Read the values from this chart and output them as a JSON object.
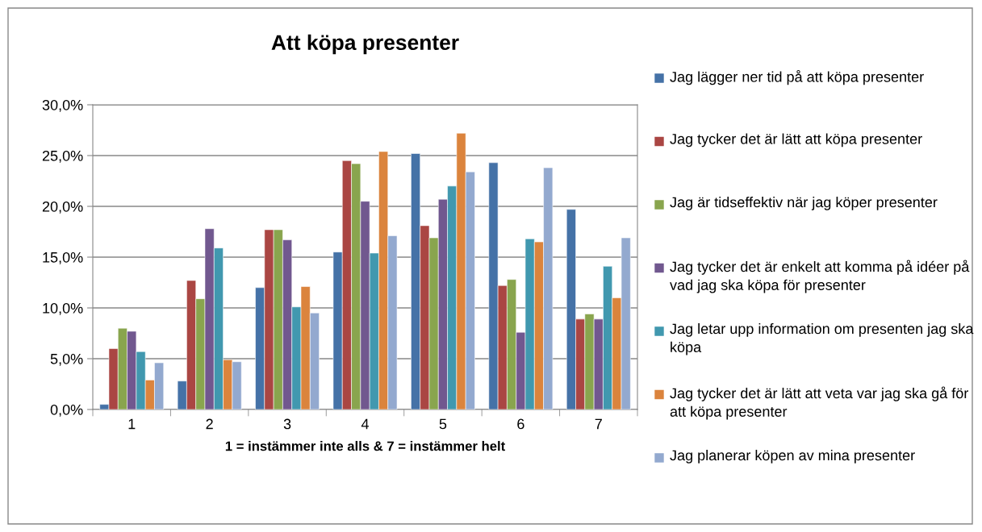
{
  "chart_data": {
    "type": "bar",
    "title": "Att köpa presenter",
    "xlabel": "1 = instämmer inte alls & 7 = instämmer helt",
    "categories": [
      "1",
      "2",
      "3",
      "4",
      "5",
      "6",
      "7"
    ],
    "series": [
      {
        "name": "Jag lägger ner tid på att köpa presenter",
        "color": "#4572a7",
        "values": [
          0.5,
          2.8,
          12.0,
          15.5,
          25.2,
          24.3,
          19.7
        ]
      },
      {
        "name": "Jag tycker det är lätt att köpa presenter",
        "color": "#aa4643",
        "values": [
          6.0,
          12.7,
          17.7,
          24.5,
          18.1,
          12.2,
          8.9
        ]
      },
      {
        "name": "Jag är tidseffektiv när jag köper presenter",
        "color": "#89a54e",
        "values": [
          8.0,
          10.9,
          17.7,
          24.2,
          16.9,
          12.8,
          9.4
        ]
      },
      {
        "name": "Jag tycker det är enkelt att komma på idéer på vad jag ska köpa för presenter",
        "color": "#71588f",
        "values": [
          7.7,
          17.8,
          16.7,
          20.5,
          20.7,
          7.6,
          8.9
        ]
      },
      {
        "name": "Jag letar upp information om presenten jag ska köpa",
        "color": "#4198af",
        "values": [
          5.7,
          15.9,
          10.1,
          15.4,
          22.0,
          16.8,
          14.1
        ]
      },
      {
        "name": "Jag tycker det är lätt att veta var jag ska gå för att köpa presenter",
        "color": "#db843d",
        "values": [
          2.9,
          4.9,
          12.1,
          25.4,
          27.2,
          16.5,
          11.0
        ]
      },
      {
        "name": "Jag planerar köpen av mina presenter",
        "color": "#93a9cf",
        "values": [
          4.6,
          4.7,
          9.5,
          17.1,
          23.4,
          23.8,
          16.9
        ]
      }
    ],
    "ylim": [
      0,
      30
    ],
    "yticks": [
      {
        "value": 0,
        "label": "0,0%"
      },
      {
        "value": 5,
        "label": "5,0%"
      },
      {
        "value": 10,
        "label": "10,0%"
      },
      {
        "value": 15,
        "label": "15,0%"
      },
      {
        "value": 20,
        "label": "20,0%"
      },
      {
        "value": 25,
        "label": "25,0%"
      },
      {
        "value": 30,
        "label": "30,0%"
      }
    ],
    "grid": "y",
    "legend": "right"
  }
}
